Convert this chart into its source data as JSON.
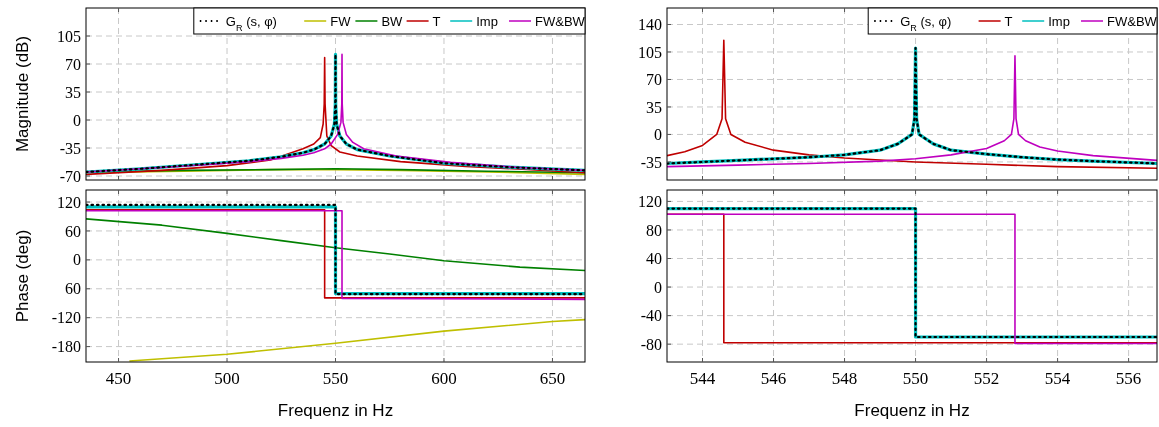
{
  "chart_data": [
    {
      "type": "line",
      "ylabel": "Magnitude (dB)",
      "xlim": [
        435,
        665
      ],
      "ylim": [
        -75,
        140
      ],
      "xticks": [
        450,
        500,
        550,
        600,
        650
      ],
      "yticks": [
        -70,
        -35,
        0,
        35,
        70,
        105
      ],
      "tick_labels": "y",
      "grid": true,
      "legend": "top right",
      "series": [
        {
          "name": "G$_{R}$ (s, φ)",
          "color": "#000000",
          "line_style": "dotted",
          "x": [
            435,
            460,
            490,
            510,
            525,
            535,
            540,
            545,
            548,
            549.5,
            549.9,
            550,
            550.1,
            550.5,
            552,
            555,
            560,
            575,
            600,
            630,
            665
          ],
          "values": [
            -65,
            -61,
            -55,
            -51,
            -46,
            -41,
            -37,
            -30,
            -20,
            -5,
            20,
            82,
            20,
            -5,
            -20,
            -30,
            -37,
            -45,
            -54,
            -59,
            -63
          ]
        },
        {
          "name": "FW",
          "color": "#bfbf00",
          "x": [
            435,
            480,
            520,
            550,
            580,
            620,
            665
          ],
          "values": [
            -66,
            -64,
            -62,
            -62,
            -63,
            -65,
            -68
          ]
        },
        {
          "name": "BW",
          "color": "#008000",
          "x": [
            435,
            480,
            520,
            550,
            580,
            620,
            665
          ],
          "values": [
            -65,
            -63,
            -62,
            -61,
            -62,
            -64,
            -66
          ]
        },
        {
          "name": "T",
          "color": "#bf0000",
          "x": [
            435,
            470,
            500,
            520,
            535,
            540,
            543,
            544.3,
            544.8,
            545,
            545.2,
            546,
            548,
            552,
            560,
            580,
            610,
            640,
            665
          ],
          "values": [
            -68,
            -63,
            -57,
            -50,
            -36,
            -30,
            -22,
            -5,
            20,
            78,
            20,
            -20,
            -32,
            -40,
            -45,
            -52,
            -58,
            -62,
            -66
          ]
        },
        {
          "name": "Imp",
          "color": "#00bfbf",
          "x": [
            435,
            460,
            490,
            510,
            525,
            535,
            540,
            545,
            548,
            549.5,
            549.9,
            550,
            550.1,
            550.5,
            552,
            555,
            560,
            575,
            600,
            630,
            665
          ],
          "values": [
            -65,
            -61,
            -55,
            -51,
            -46,
            -41,
            -37,
            -30,
            -20,
            -5,
            20,
            82,
            20,
            -5,
            -20,
            -30,
            -37,
            -45,
            -54,
            -59,
            -63
          ]
        },
        {
          "name": "FW&BW",
          "color": "#bf00bf",
          "x": [
            435,
            460,
            490,
            510,
            525,
            535,
            540,
            545,
            548,
            551,
            552.5,
            552.9,
            553,
            553.1,
            553.5,
            555,
            558,
            563,
            578,
            603,
            633,
            665
          ],
          "values": [
            -65,
            -61,
            -56,
            -52,
            -48,
            -44,
            -41,
            -36,
            -30,
            -18,
            -3,
            20,
            82,
            20,
            -3,
            -18,
            -28,
            -36,
            -45,
            -53,
            -59,
            -63
          ]
        }
      ]
    },
    {
      "type": "line",
      "ylabel": "Phase (deg)",
      "xlabel": "Frequenz in Hz",
      "xlim": [
        435,
        665
      ],
      "ylim": [
        -212,
        145
      ],
      "xticks": [
        450,
        500,
        550,
        600,
        650
      ],
      "yticks": [
        -180,
        -120,
        {
          "value": -60,
          "label": "60"
        },
        0,
        60,
        120
      ],
      "grid": true,
      "series": [
        {
          "color": "#000000",
          "line_style": "dotted",
          "x": [
            435,
            550,
            550,
            665
          ],
          "values": [
            114,
            114,
            -71,
            -71
          ]
        },
        {
          "color": "#bfbf00",
          "x": [
            455,
            500,
            550,
            600,
            650,
            665
          ],
          "values": [
            -210,
            -196,
            -173,
            -148,
            -128,
            -124
          ]
        },
        {
          "color": "#008000",
          "x": [
            435,
            470,
            500,
            525,
            550,
            575,
            600,
            635,
            665
          ],
          "values": [
            85,
            72,
            55,
            40,
            25,
            12,
            -2,
            -15,
            -22
          ]
        },
        {
          "color": "#bf0000",
          "x": [
            435,
            545,
            545,
            665
          ],
          "values": [
            104,
            104,
            -79,
            -79
          ]
        },
        {
          "color": "#00bfbf",
          "x": [
            435,
            550,
            550,
            665
          ],
          "values": [
            110,
            110,
            -70,
            -70
          ]
        },
        {
          "color": "#bf00bf",
          "x": [
            435,
            553,
            553,
            665
          ],
          "values": [
            102,
            102,
            -80,
            -82
          ]
        }
      ]
    },
    {
      "type": "line",
      "xlim": [
        543,
        556.8
      ],
      "ylim": [
        -58,
        161
      ],
      "xticks": [
        544,
        546,
        548,
        550,
        552,
        554,
        556
      ],
      "yticks": [
        -35,
        0,
        35,
        70,
        105,
        140
      ],
      "tick_labels": "y",
      "grid": true,
      "legend": "top right",
      "series": [
        {
          "name": "G$_{R}$ (s, φ)",
          "color": "#000000",
          "line_style": "dotted",
          "x": [
            543,
            544,
            545,
            546,
            547,
            548,
            549,
            549.5,
            549.9,
            549.97,
            550,
            550.03,
            550.1,
            550.5,
            551,
            552,
            553,
            554,
            555,
            556.8
          ],
          "values": [
            -37,
            -35,
            -33,
            -31,
            -29,
            -26,
            -20,
            -12,
            0,
            20,
            110,
            20,
            0,
            -12,
            -20,
            -25,
            -29,
            -32,
            -34,
            -37
          ]
        },
        {
          "name": "T",
          "color": "#bf0000",
          "x": [
            543,
            543.5,
            544,
            544.4,
            544.55,
            544.6,
            544.65,
            544.8,
            545.2,
            546,
            547,
            548,
            550,
            552,
            554,
            556.8
          ],
          "values": [
            -27,
            -22,
            -14,
            0,
            20,
            120,
            20,
            0,
            -10,
            -20,
            -26,
            -30,
            -35,
            -38,
            -41,
            -43
          ]
        },
        {
          "name": "Imp",
          "color": "#00bfbf",
          "x": [
            543,
            544,
            545,
            546,
            547,
            548,
            549,
            549.5,
            549.9,
            549.97,
            550,
            550.03,
            550.1,
            550.5,
            551,
            552,
            553,
            554,
            555,
            556.8
          ],
          "values": [
            -37,
            -35,
            -33,
            -31,
            -29,
            -26,
            -20,
            -12,
            0,
            20,
            110,
            20,
            0,
            -12,
            -20,
            -25,
            -29,
            -32,
            -34,
            -37
          ]
        },
        {
          "name": "FW&BW",
          "color": "#bf00bf",
          "x": [
            543,
            545,
            547,
            549,
            550,
            551,
            552,
            552.5,
            552.7,
            552.77,
            552.8,
            552.83,
            552.9,
            553.1,
            553.5,
            554,
            555,
            556.8
          ],
          "values": [
            -41,
            -39,
            -37,
            -34,
            -31,
            -26,
            -18,
            -8,
            0,
            20,
            100,
            20,
            0,
            -8,
            -16,
            -21,
            -27,
            -33
          ]
        }
      ]
    },
    {
      "type": "line",
      "xlabel": "Frequenz in Hz",
      "xlim": [
        543,
        556.8
      ],
      "ylim": [
        -105,
        136
      ],
      "xticks": [
        544,
        546,
        548,
        550,
        552,
        554,
        556
      ],
      "yticks": [
        -80,
        -40,
        0,
        40,
        80,
        120
      ],
      "grid": true,
      "series": [
        {
          "color": "#000000",
          "line_style": "dotted",
          "x": [
            543,
            550,
            550,
            556.8
          ],
          "values": [
            110,
            110,
            -70,
            -70
          ]
        },
        {
          "color": "#bf0000",
          "x": [
            543,
            544.6,
            544.6,
            556.8
          ],
          "values": [
            102,
            102,
            -78,
            -78
          ]
        },
        {
          "color": "#00bfbf",
          "x": [
            543,
            550,
            550,
            556.8
          ],
          "values": [
            110,
            110,
            -70,
            -70
          ]
        },
        {
          "color": "#bf00bf",
          "x": [
            543,
            552.8,
            552.8,
            556.8
          ],
          "values": [
            102,
            102,
            -79,
            -79
          ]
        }
      ]
    }
  ]
}
